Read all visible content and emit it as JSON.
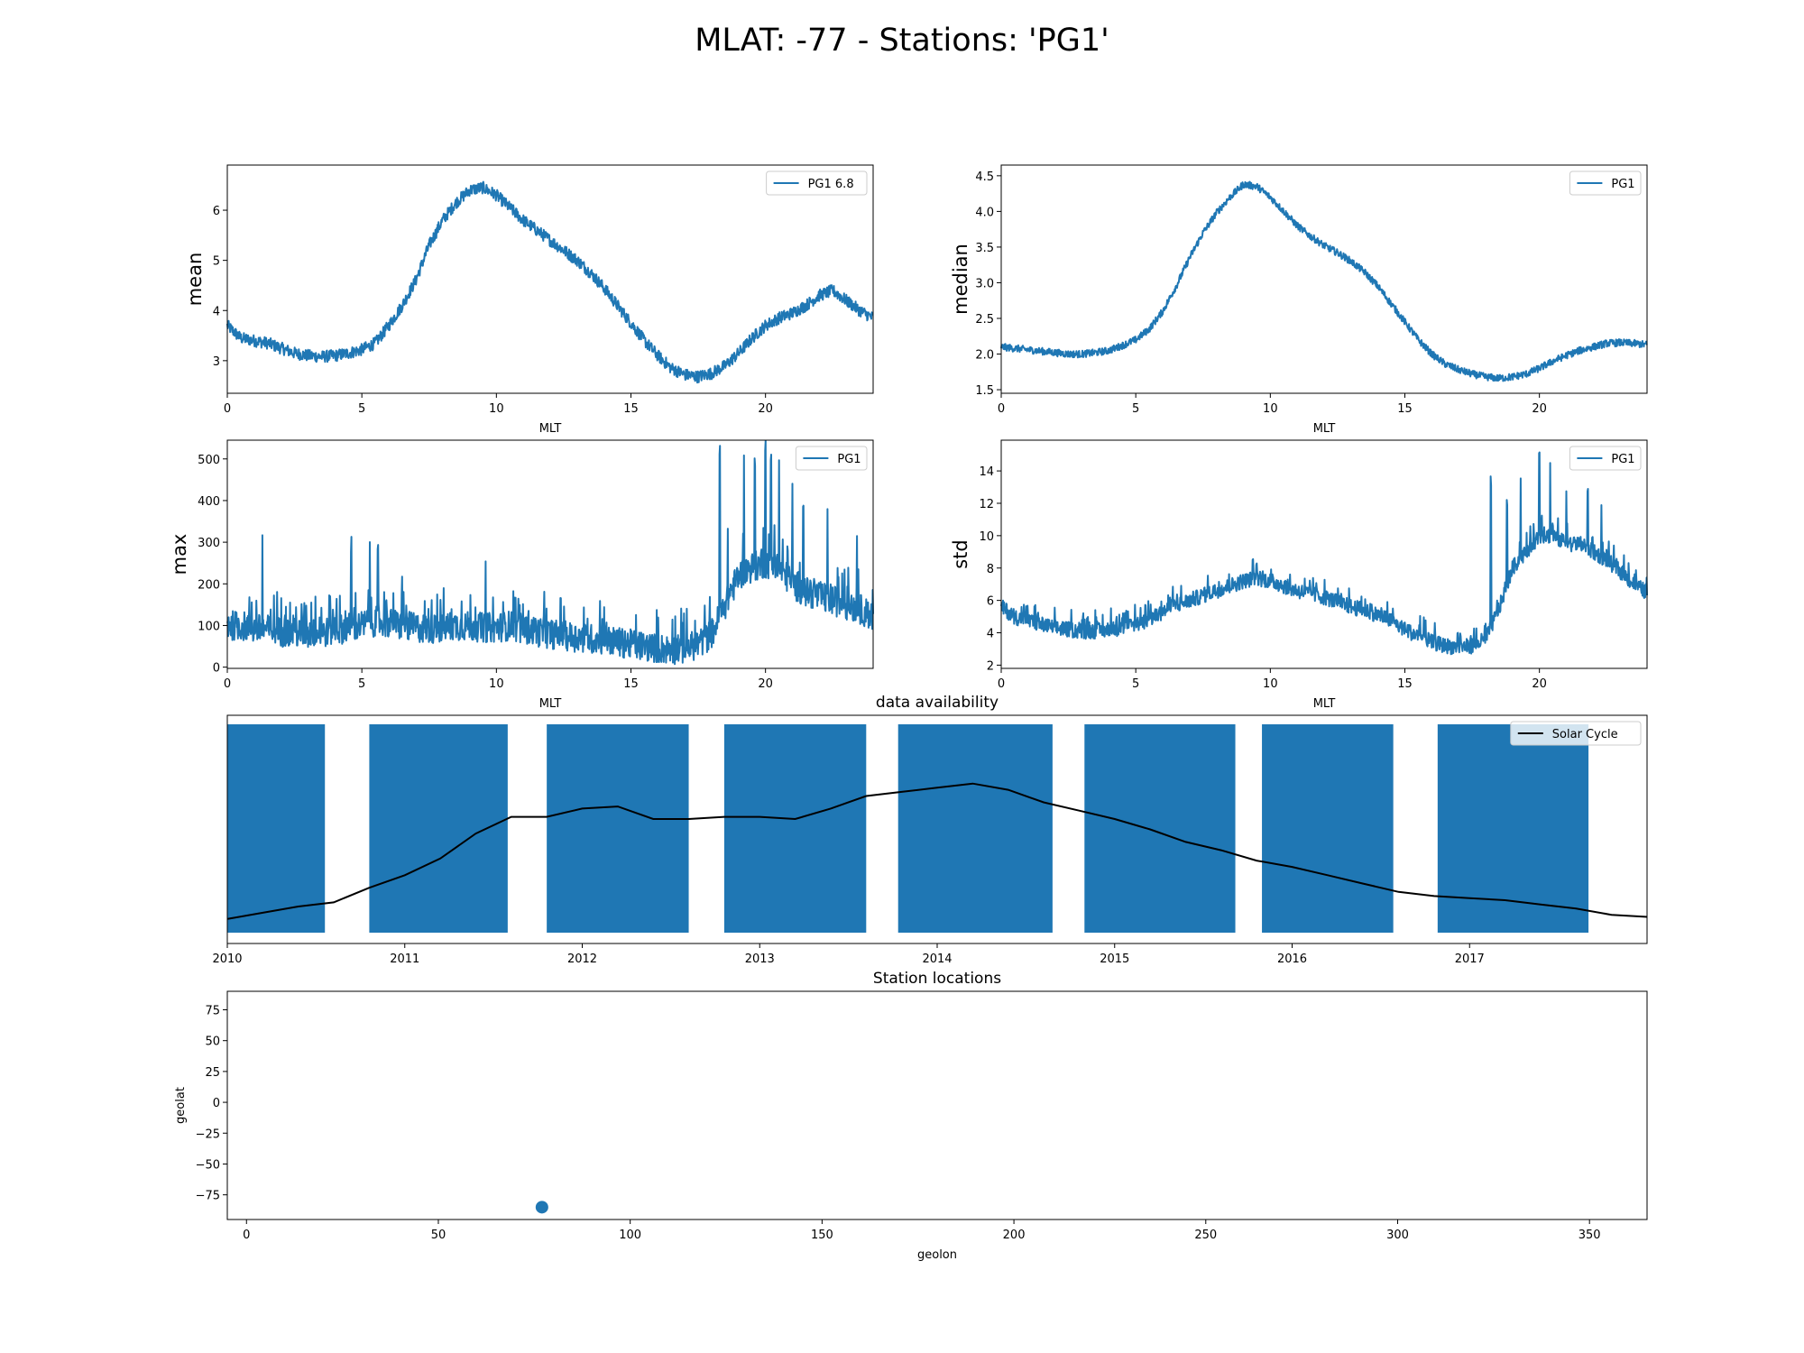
{
  "figure": {
    "suptitle": "MLAT: -77 - Stations: 'PG1'"
  },
  "colors": {
    "series": "#1f77b4",
    "solar": "#000000"
  },
  "chart_data": [
    {
      "id": "mean",
      "type": "line",
      "title": "",
      "xlabel": "MLT",
      "ylabel": "mean",
      "xlim": [
        0,
        24
      ],
      "ylim": [
        2.35,
        6.9
      ],
      "xticks": [
        0,
        5,
        10,
        15,
        20
      ],
      "yticks": [
        3,
        4,
        5,
        6
      ],
      "legend": {
        "placement": "upper right",
        "entries": [
          "PG1 6.8"
        ]
      },
      "series": [
        {
          "name": "PG1 6.8",
          "x": [
            0,
            0.5,
            1,
            1.5,
            2,
            2.5,
            3,
            3.5,
            4,
            4.5,
            5,
            5.5,
            6,
            6.5,
            7,
            7.5,
            8,
            8.5,
            9,
            9.5,
            10,
            10.5,
            11,
            11.5,
            12,
            12.5,
            13,
            13.5,
            14,
            14.5,
            15,
            15.5,
            16,
            16.5,
            17,
            17.5,
            18,
            18.5,
            19,
            19.5,
            20,
            20.5,
            21,
            21.5,
            22,
            22.5,
            23,
            23.5,
            24
          ],
          "y": [
            3.7,
            3.45,
            3.4,
            3.35,
            3.25,
            3.15,
            3.1,
            3.08,
            3.1,
            3.15,
            3.22,
            3.35,
            3.7,
            4.1,
            4.6,
            5.3,
            5.8,
            6.15,
            6.4,
            6.45,
            6.3,
            6.05,
            5.8,
            5.6,
            5.4,
            5.2,
            5.0,
            4.75,
            4.45,
            4.1,
            3.75,
            3.4,
            3.1,
            2.85,
            2.72,
            2.68,
            2.75,
            2.9,
            3.15,
            3.45,
            3.7,
            3.85,
            3.95,
            4.1,
            4.3,
            4.4,
            4.2,
            4.0,
            3.85
          ],
          "noise": 0.12
        }
      ]
    },
    {
      "id": "median",
      "type": "line",
      "title": "",
      "xlabel": "MLT",
      "ylabel": "median",
      "xlim": [
        0,
        24
      ],
      "ylim": [
        1.45,
        4.65
      ],
      "xticks": [
        0,
        5,
        10,
        15,
        20
      ],
      "yticks": [
        1.5,
        2.0,
        2.5,
        3.0,
        3.5,
        4.0,
        4.5
      ],
      "ytickfmt": 1,
      "legend": {
        "placement": "upper right",
        "entries": [
          "PG1"
        ]
      },
      "series": [
        {
          "name": "PG1",
          "x": [
            0,
            0.5,
            1,
            1.5,
            2,
            2.5,
            3,
            3.5,
            4,
            4.5,
            5,
            5.5,
            6,
            6.5,
            7,
            7.5,
            8,
            8.5,
            9,
            9.5,
            10,
            10.5,
            11,
            11.5,
            12,
            12.5,
            13,
            13.5,
            14,
            14.5,
            15,
            15.5,
            16,
            16.5,
            17,
            17.5,
            18,
            18.5,
            19,
            19.5,
            20,
            20.5,
            21,
            21.5,
            22,
            22.5,
            23,
            23.5,
            24
          ],
          "y": [
            2.1,
            2.08,
            2.06,
            2.04,
            2.02,
            2.0,
            2.0,
            2.02,
            2.05,
            2.12,
            2.2,
            2.35,
            2.6,
            2.95,
            3.35,
            3.7,
            3.98,
            4.2,
            4.38,
            4.35,
            4.2,
            4.0,
            3.8,
            3.65,
            3.52,
            3.42,
            3.3,
            3.15,
            2.95,
            2.7,
            2.45,
            2.2,
            2.0,
            1.86,
            1.78,
            1.72,
            1.68,
            1.66,
            1.68,
            1.72,
            1.8,
            1.9,
            1.98,
            2.05,
            2.1,
            2.15,
            2.16,
            2.15,
            2.13
          ],
          "noise": 0.05
        }
      ]
    },
    {
      "id": "max",
      "type": "line",
      "title": "",
      "xlabel": "MLT",
      "ylabel": "max",
      "xlim": [
        0,
        24
      ],
      "ylim": [
        -3,
        545
      ],
      "xticks": [
        0,
        5,
        10,
        15,
        20
      ],
      "yticks": [
        0,
        100,
        200,
        300,
        400,
        500
      ],
      "legend": {
        "placement": "upper right",
        "entries": [
          "PG1"
        ]
      },
      "series": [
        {
          "name": "PG1",
          "x": [
            0,
            0.5,
            1,
            1.5,
            2,
            2.5,
            3,
            3.5,
            4,
            4.5,
            5,
            5.5,
            6,
            6.5,
            7,
            7.5,
            8,
            8.5,
            9,
            9.5,
            10,
            10.5,
            11,
            11.5,
            12,
            12.5,
            13,
            13.5,
            14,
            14.5,
            15,
            15.5,
            16,
            16.5,
            17,
            17.5,
            18,
            18.5,
            19,
            19.5,
            20,
            20.5,
            21,
            21.5,
            22,
            22.5,
            23,
            23.5,
            24
          ],
          "y": [
            100,
            100,
            92,
            90,
            85,
            82,
            80,
            82,
            88,
            95,
            100,
            110,
            105,
            100,
            95,
            92,
            95,
            100,
            98,
            95,
            95,
            100,
            92,
            85,
            80,
            75,
            72,
            68,
            65,
            60,
            55,
            50,
            45,
            42,
            45,
            55,
            80,
            150,
            220,
            240,
            250,
            240,
            200,
            180,
            170,
            160,
            150,
            140,
            120
          ],
          "noise": 45,
          "peaks": [
            [
              1.3,
              328
            ],
            [
              4.6,
              300
            ],
            [
              5.3,
              325
            ],
            [
              5.6,
              260
            ],
            [
              6.5,
              225
            ],
            [
              9.6,
              230
            ],
            [
              18.3,
              520
            ],
            [
              18.6,
              360
            ],
            [
              19.2,
              420
            ],
            [
              19.6,
              500
            ],
            [
              20.0,
              520
            ],
            [
              20.2,
              510
            ],
            [
              20.5,
              460
            ],
            [
              21.0,
              430
            ],
            [
              21.4,
              410
            ],
            [
              22.3,
              390
            ],
            [
              23.4,
              300
            ]
          ]
        }
      ]
    },
    {
      "id": "std",
      "type": "line",
      "title": "",
      "xlabel": "MLT",
      "ylabel": "std",
      "xlim": [
        0,
        24
      ],
      "ylim": [
        1.8,
        15.9
      ],
      "xticks": [
        0,
        5,
        10,
        15,
        20
      ],
      "yticks": [
        2,
        4,
        6,
        8,
        10,
        12,
        14
      ],
      "legend": {
        "placement": "upper right",
        "entries": [
          "PG1"
        ]
      },
      "series": [
        {
          "name": "PG1",
          "x": [
            0,
            0.5,
            1,
            1.5,
            2,
            2.5,
            3,
            3.5,
            4,
            4.5,
            5,
            5.5,
            6,
            6.5,
            7,
            7.5,
            8,
            8.5,
            9,
            9.5,
            10,
            10.5,
            11,
            11.5,
            12,
            12.5,
            13,
            13.5,
            14,
            14.5,
            15,
            15.5,
            16,
            16.5,
            17,
            17.5,
            18,
            18.5,
            19,
            19.5,
            20,
            20.5,
            21,
            21.5,
            22,
            22.5,
            23,
            23.5,
            24
          ],
          "y": [
            5.6,
            5.0,
            4.7,
            4.5,
            4.3,
            4.2,
            4.1,
            4.1,
            4.2,
            4.3,
            4.5,
            4.8,
            5.3,
            5.7,
            6.0,
            6.3,
            6.6,
            6.9,
            7.2,
            7.4,
            7.2,
            6.9,
            6.6,
            6.4,
            6.2,
            5.9,
            5.6,
            5.4,
            5.1,
            4.7,
            4.2,
            3.8,
            3.4,
            3.2,
            3.1,
            3.2,
            3.6,
            5.5,
            8.0,
            9.0,
            10.0,
            10.0,
            9.5,
            9.5,
            9.0,
            8.5,
            7.8,
            7.0,
            6.5
          ],
          "noise": 0.6,
          "peaks": [
            [
              18.2,
              13.2
            ],
            [
              18.8,
              12.0
            ],
            [
              19.3,
              13.8
            ],
            [
              20.0,
              15.2
            ],
            [
              20.4,
              14.5
            ],
            [
              21.0,
              13.0
            ],
            [
              21.8,
              12.6
            ],
            [
              22.3,
              11.8
            ]
          ]
        }
      ]
    },
    {
      "id": "availability",
      "type": "bar",
      "title": "data availability",
      "xlabel": "",
      "ylabel": "",
      "xlim": [
        2010.0,
        2018.0
      ],
      "xticks": [
        2010,
        2011,
        2012,
        2013,
        2014,
        2015,
        2016,
        2017
      ],
      "legend": {
        "placement": "upper right",
        "entries": [
          "Solar Cycle"
        ]
      },
      "availability_spans": [
        [
          2010.0,
          2010.55
        ],
        [
          2010.8,
          2011.58
        ],
        [
          2011.8,
          2012.6
        ],
        [
          2012.8,
          2013.6
        ],
        [
          2013.78,
          2014.65
        ],
        [
          2014.83,
          2015.68
        ],
        [
          2015.83,
          2016.57
        ],
        [
          2016.82,
          2017.67
        ]
      ],
      "series": [
        {
          "name": "Solar Cycle",
          "x": [
            2010.0,
            2010.2,
            2010.4,
            2010.6,
            2010.8,
            2011.0,
            2011.2,
            2011.4,
            2011.6,
            2011.8,
            2012.0,
            2012.2,
            2012.4,
            2012.6,
            2012.8,
            2013.0,
            2013.2,
            2013.4,
            2013.6,
            2013.8,
            2014.0,
            2014.2,
            2014.4,
            2014.6,
            2014.8,
            2015.0,
            2015.2,
            2015.4,
            2015.6,
            2015.8,
            2016.0,
            2016.2,
            2016.4,
            2016.6,
            2016.8,
            2017.0,
            2017.2,
            2017.4,
            2017.6,
            2017.8,
            2018.0
          ],
          "y": [
            0.07,
            0.1,
            0.13,
            0.15,
            0.22,
            0.28,
            0.36,
            0.48,
            0.56,
            0.56,
            0.6,
            0.61,
            0.55,
            0.55,
            0.56,
            0.56,
            0.55,
            0.6,
            0.66,
            0.68,
            0.7,
            0.72,
            0.69,
            0.63,
            0.59,
            0.55,
            0.5,
            0.44,
            0.4,
            0.35,
            0.32,
            0.28,
            0.24,
            0.2,
            0.18,
            0.17,
            0.16,
            0.14,
            0.12,
            0.09,
            0.08
          ]
        }
      ]
    },
    {
      "id": "stations",
      "type": "scatter",
      "title": "Station locations",
      "xlabel": "geolon",
      "ylabel": "geolat",
      "xlim": [
        -5,
        365
      ],
      "ylim": [
        -95,
        90
      ],
      "xticks": [
        0,
        50,
        100,
        150,
        200,
        250,
        300,
        350
      ],
      "yticks": [
        -75,
        -50,
        -25,
        0,
        25,
        50,
        75
      ],
      "points": [
        {
          "x": 77,
          "y": -85
        }
      ]
    }
  ]
}
